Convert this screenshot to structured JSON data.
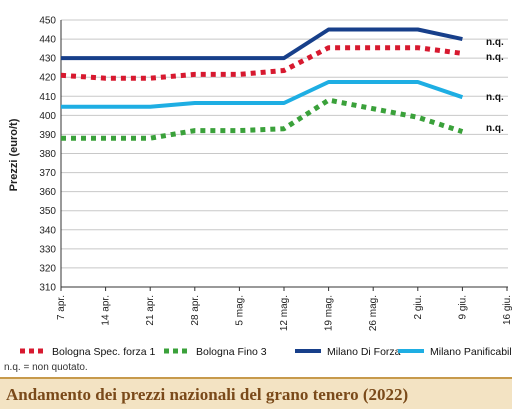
{
  "page": {
    "note": "n.q. = non quotato.",
    "title": "Andamento dei prezzi nazionali del grano tenero (2022)"
  },
  "chart_data": {
    "type": "line",
    "title": "Andamento dei prezzi nazionali del grano tenero (2022)",
    "ylabel": "Prezzi (euro/t)",
    "xlabel": "",
    "categories": [
      "7 apr.",
      "14 apr.",
      "21 apr.",
      "28 apr.",
      "5 mag.",
      "12 mag.",
      "19 mag.",
      "26 mag.",
      "2 giu.",
      "9 giu.",
      "16 giu."
    ],
    "ylim": [
      310,
      450
    ],
    "yticks": [
      310,
      320,
      330,
      340,
      350,
      360,
      370,
      380,
      390,
      400,
      410,
      420,
      430,
      440,
      450
    ],
    "grid": "horizontal",
    "legend_position": "bottom",
    "series": [
      {
        "name": "Bologna Spec. forza 1",
        "color": "#d7192f",
        "style": "dotted",
        "values": [
          421,
          419.5,
          419.5,
          421.5,
          421.5,
          423.5,
          435.5,
          435.5,
          435.5,
          432.5,
          null
        ],
        "end_label": "n.q."
      },
      {
        "name": "Bologna Fino 3",
        "color": "#3aa13a",
        "style": "dotted",
        "values": [
          388,
          388,
          388,
          392,
          392,
          393,
          408,
          null,
          399,
          391.5,
          null
        ],
        "end_label": "n.q."
      },
      {
        "name": "Milano Di Forza",
        "color": "#173f8a",
        "style": "solid",
        "values": [
          430,
          430,
          430,
          430,
          430,
          430,
          445,
          445,
          445,
          440,
          null
        ],
        "end_label": "n.q."
      },
      {
        "name": "Milano Panificabile",
        "color": "#1eaee3",
        "style": "solid",
        "values": [
          404.5,
          404.5,
          404.5,
          406.5,
          406.5,
          406.5,
          417.5,
          417.5,
          417.5,
          409.5,
          null
        ],
        "end_label": "n.q."
      }
    ]
  }
}
